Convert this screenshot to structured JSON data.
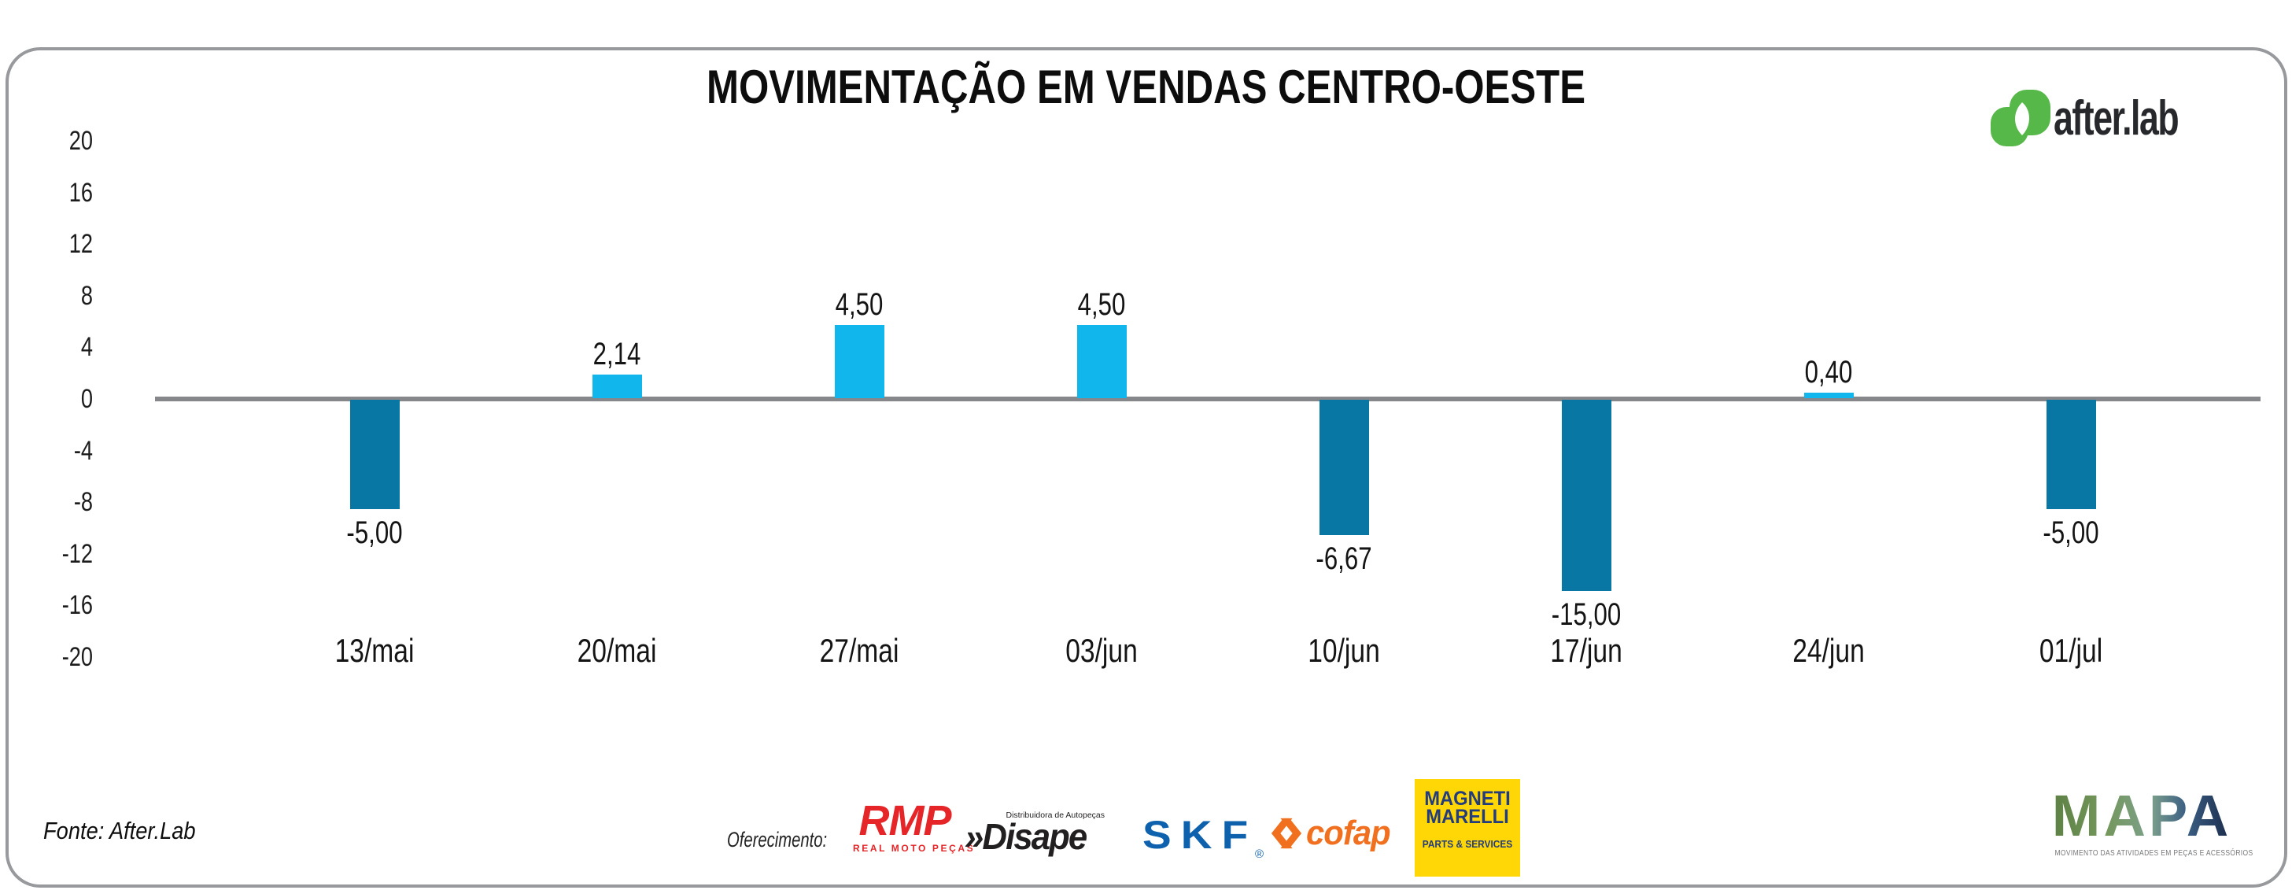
{
  "brand": {
    "wordmark": "after.lab",
    "icon": "afterlab-leaf-icon",
    "green": "#55b848",
    "text_color": "#26282b"
  },
  "chart_data": {
    "type": "bar",
    "title": "MOVIMENTAÇÃO EM VENDAS CENTRO-OESTE",
    "categories": [
      "13/mai",
      "20/mai",
      "27/mai",
      "03/jun",
      "10/jun",
      "17/jun",
      "24/jun",
      "01/jul"
    ],
    "values": [
      -5.0,
      2.14,
      4.5,
      4.5,
      -6.67,
      -15.0,
      0.4,
      -5.0
    ],
    "value_labels": [
      "-5,00",
      "2,14",
      "4,50",
      "4,50",
      "-6,67",
      "-15,00",
      "0,40",
      "-5,00"
    ],
    "y_ticks": [
      20,
      16,
      12,
      8,
      4,
      0,
      -4,
      -8,
      -12,
      -16,
      -20
    ],
    "ylim": [
      -20,
      20
    ],
    "xlabel": "",
    "ylabel": "",
    "grid": false,
    "legend": false,
    "colors": {
      "positive": "#10b6ec",
      "negative": "#0877a4",
      "axis_line": "#85878a",
      "label_text": "#141414"
    },
    "bar_visual_units_hint": [
      -8.5,
      1.8,
      5.7,
      5.7,
      -10.5,
      -14.8,
      0.45,
      -8.5
    ]
  },
  "footer": {
    "source_text": "Fonte: After.Lab",
    "sponsorship_label": "Oferecimento:",
    "sponsors": {
      "rmp": {
        "name": "RMP",
        "subtitle": "REAL MOTO PEÇAS",
        "color": "#e52528"
      },
      "disape": {
        "prefix": "»",
        "name": "Disape",
        "subtitle": "Distribuidora de Autopeças",
        "color": "#221f20"
      },
      "skf": {
        "name": "SKF",
        "registered": "®",
        "color": "#0e62ad"
      },
      "cofap": {
        "name": "cofap",
        "color": "#f1701f"
      },
      "magneti_marelli": {
        "line1": "MAGNETI",
        "line2": "MARELLI",
        "subtitle": "PARTS & SERVICES",
        "bg": "#ffd606",
        "fg": "#233c7d"
      }
    },
    "mapa": {
      "wordmark": "MAPA",
      "tagline": "MOVIMENTO DAS ATIVIDADES EM PEÇAS E ACESSÓRIOS",
      "gradient": [
        "#5d8044",
        "#74975c",
        "#7ca08b",
        "#3a5e83",
        "#1b2b4a"
      ],
      "tagline_color": "#77787b"
    }
  }
}
